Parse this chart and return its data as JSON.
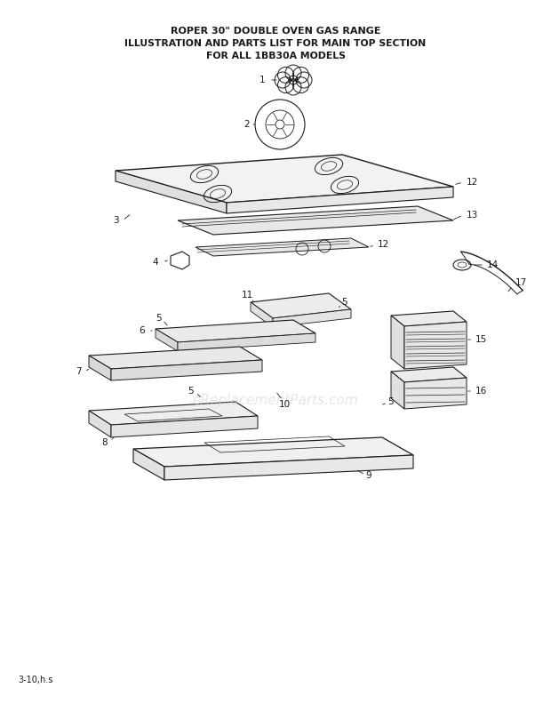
{
  "title_line1": "ROPER 30\" DOUBLE OVEN GAS RANGE",
  "title_line2": "ILLUSTRATION AND PARTS LIST FOR MAIN TOP SECTION",
  "title_line3": "FOR ALL 1BB30A MODELS",
  "footer": "3-10,h.s",
  "watermark": "eReplacementParts.com",
  "bg_color": "#ffffff",
  "tc": "#1a1a1a",
  "lw": 0.8
}
